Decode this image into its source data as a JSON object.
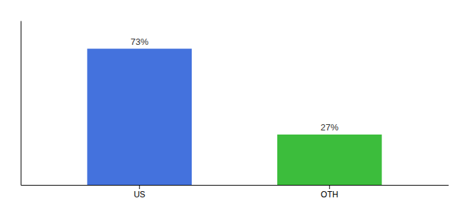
{
  "chart_data": {
    "type": "bar",
    "categories": [
      "US",
      "OTH"
    ],
    "values": [
      73,
      27
    ],
    "value_labels": [
      "73%",
      "27%"
    ],
    "colors": [
      "#4472dd",
      "#3cbd3c"
    ],
    "ylim": [
      0,
      88
    ],
    "data_labels": true,
    "tick_labels": "x"
  }
}
